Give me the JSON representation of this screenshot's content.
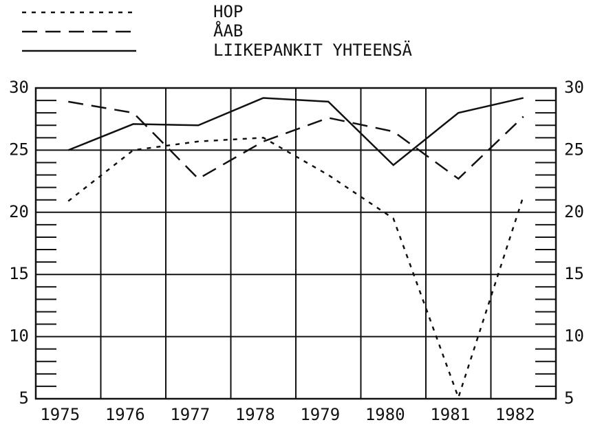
{
  "chart_data": {
    "type": "line",
    "categories": [
      "1975",
      "1976",
      "1977",
      "1978",
      "1979",
      "1980",
      "1981",
      "1982"
    ],
    "series": [
      {
        "name": "HOP",
        "color": "#111111",
        "dash": "6,8",
        "values": [
          20.9,
          25.0,
          25.7,
          26.0,
          23.0,
          19.5,
          5.1,
          21.3
        ]
      },
      {
        "name": "ÅAB",
        "color": "#111111",
        "dash": "22,12",
        "values": [
          28.9,
          28.0,
          22.7,
          25.7,
          27.6,
          26.5,
          22.7,
          27.7
        ]
      },
      {
        "name": "LIIKEPANKIT YHTEENSÄ",
        "color": "#111111",
        "dash": "none",
        "values": [
          25.0,
          27.1,
          27.0,
          29.2,
          28.9,
          23.8,
          28.0,
          29.2
        ]
      }
    ],
    "ylim": [
      5,
      30
    ],
    "yticks": [
      5,
      10,
      15,
      20,
      25,
      30
    ],
    "yminorticks": [
      6,
      7,
      8,
      9,
      11,
      12,
      13,
      14,
      16,
      17,
      18,
      19,
      21,
      22,
      23,
      24,
      26,
      27,
      28,
      29
    ],
    "grid": true
  }
}
